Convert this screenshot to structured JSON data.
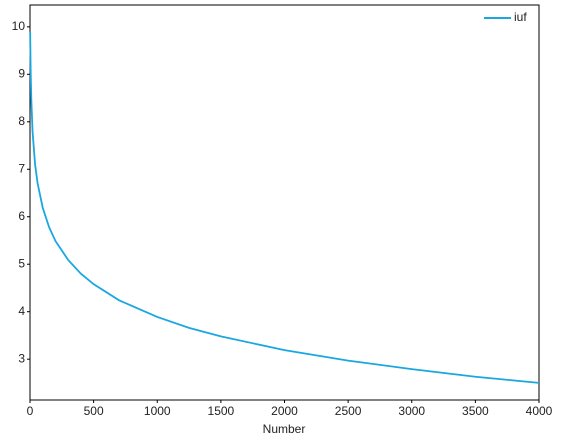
{
  "chart_data": {
    "type": "line",
    "x_label": "Number",
    "x": [
      1,
      5,
      10,
      20,
      40,
      60,
      100,
      150,
      200,
      300,
      400,
      500,
      700,
      1000,
      1250,
      1500,
      2000,
      2500,
      3000,
      3500,
      4000
    ],
    "series": [
      {
        "name": "iuf",
        "color": "#1aa7e0",
        "values": [
          9.9,
          9.1,
          8.49,
          7.8,
          7.1,
          6.7,
          6.19,
          5.78,
          5.49,
          5.09,
          4.8,
          4.58,
          4.24,
          3.89,
          3.66,
          3.48,
          3.19,
          2.97,
          2.79,
          2.63,
          2.5
        ]
      }
    ],
    "xlim": [
      0,
      4000
    ],
    "xticks": [
      0,
      500,
      1000,
      1500,
      2000,
      2500,
      3000,
      3500,
      4000
    ],
    "ylim": [
      2.14,
      10.46
    ],
    "yticks": [
      3,
      4,
      5,
      6,
      7,
      8,
      9,
      10
    ],
    "legend": "upper right",
    "grid": false
  }
}
